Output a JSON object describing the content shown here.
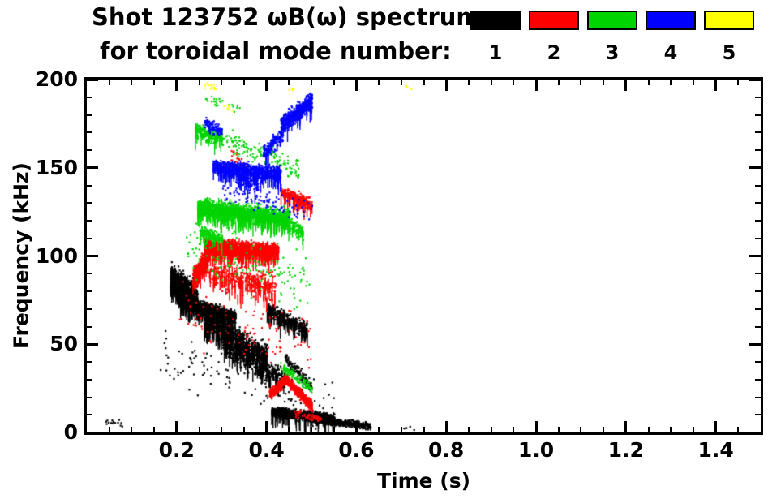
{
  "title": {
    "line1": "Shot 123752 ωB(ω) spectrum",
    "line2": "for toroidal mode number:"
  },
  "legend": {
    "entries": [
      {
        "label": "1",
        "color": "#000000"
      },
      {
        "label": "2",
        "color": "#ff0000"
      },
      {
        "label": "3",
        "color": "#00d400"
      },
      {
        "label": "4",
        "color": "#0000ff"
      },
      {
        "label": "5",
        "color": "#ffff00"
      }
    ]
  },
  "axes": {
    "xlabel": "Time (s)",
    "ylabel": "Frequency (kHz)",
    "xlim": [
      0,
      1.5
    ],
    "ylim": [
      0,
      200
    ],
    "xtick_values": [
      0.2,
      0.4,
      0.6,
      0.8,
      1.0,
      1.2,
      1.4
    ],
    "xtick_labels": [
      "0.2",
      "0.4",
      "0.6",
      "0.8",
      "1.0",
      "1.2",
      "1.4"
    ],
    "ytick_values": [
      0,
      50,
      100,
      150,
      200
    ],
    "ytick_labels": [
      "0",
      "50",
      "100",
      "150",
      "200"
    ],
    "x_minor_step": 0.05,
    "y_minor_step": 10,
    "grid": false
  },
  "chart_data": {
    "type": "scatter",
    "title": "Shot 123752 ωB(ω) spectrum for toroidal mode number",
    "xlabel": "Time (s)",
    "ylabel": "Frequency (kHz)",
    "xlim": [
      0,
      1.5
    ],
    "ylim": [
      0,
      200
    ],
    "legend_position": "top-right",
    "series": [
      {
        "name": "n=1",
        "color": "#000000",
        "clusters": [
          {
            "t": [
              0.185,
              0.245
            ],
            "f": [
              88,
              76
            ],
            "spread": 11,
            "n": 900,
            "streak": 0.25
          },
          {
            "t": [
              0.205,
              0.33
            ],
            "f": [
              75,
              66
            ],
            "spread": 5,
            "n": 1100,
            "streak": 0.15
          },
          {
            "t": [
              0.26,
              0.4
            ],
            "f": [
              64,
              44
            ],
            "spread": 9,
            "n": 800,
            "streak": 0.25
          },
          {
            "t": [
              0.3,
              0.44
            ],
            "f": [
              50,
              30
            ],
            "spread": 8,
            "n": 450,
            "streak": 0.2
          },
          {
            "t": [
              0.4,
              0.49
            ],
            "f": [
              70,
              58
            ],
            "spread": 6,
            "n": 450,
            "streak": 0.1
          },
          {
            "t": [
              0.41,
              0.55
            ],
            "f": [
              12,
              8
            ],
            "spread": 4,
            "n": 1100,
            "streak": 0.05
          },
          {
            "t": [
              0.5,
              0.63
            ],
            "f": [
              8,
              4
            ],
            "spread": 3,
            "n": 450,
            "streak": 0
          },
          {
            "t": [
              0.16,
              0.55
            ],
            "f": [
              45,
              18
            ],
            "spread": 22,
            "n": 130,
            "streak": 0
          },
          {
            "t": [
              0.04,
              0.08
            ],
            "f": [
              6,
              5
            ],
            "spread": 3,
            "n": 14,
            "streak": 0
          },
          {
            "t": [
              0.7,
              0.73
            ],
            "f": [
              3,
              3
            ],
            "spread": 2,
            "n": 5,
            "streak": 0
          },
          {
            "t": [
              0.44,
              0.5
            ],
            "f": [
              42,
              26
            ],
            "spread": 5,
            "n": 120,
            "streak": 0
          }
        ]
      },
      {
        "name": "n=2",
        "color": "#ff0000",
        "clusters": [
          {
            "t": [
              0.235,
              0.27
            ],
            "f": [
              88,
              102
            ],
            "spread": 7,
            "n": 450,
            "streak": 0.2
          },
          {
            "t": [
              0.26,
              0.425
            ],
            "f": [
              106,
              103
            ],
            "spread": 6,
            "n": 1500,
            "streak": 0.2
          },
          {
            "t": [
              0.27,
              0.42
            ],
            "f": [
              92,
              82
            ],
            "spread": 11,
            "n": 350,
            "streak": 0.3
          },
          {
            "t": [
              0.43,
              0.5
            ],
            "f": [
              137,
              129
            ],
            "spread": 5,
            "n": 300,
            "streak": 0.1
          },
          {
            "t": [
              0.405,
              0.445
            ],
            "f": [
              22,
              31
            ],
            "spread": 4,
            "n": 350,
            "streak": 0
          },
          {
            "t": [
              0.44,
              0.5
            ],
            "f": [
              31,
              15
            ],
            "spread": 4,
            "n": 450,
            "streak": 0
          },
          {
            "t": [
              0.2,
              0.5
            ],
            "f": [
              70,
              50
            ],
            "spread": 26,
            "n": 110,
            "streak": 0
          },
          {
            "t": [
              0.32,
              0.36
            ],
            "f": [
              157,
              150
            ],
            "spread": 7,
            "n": 30,
            "streak": 0
          },
          {
            "t": [
              0.46,
              0.52
            ],
            "f": [
              12,
              8
            ],
            "spread": 3,
            "n": 60,
            "streak": 0
          }
        ]
      },
      {
        "name": "n=3",
        "color": "#00d400",
        "clusters": [
          {
            "t": [
              0.245,
              0.45
            ],
            "f": [
              128,
              122
            ],
            "spread": 7,
            "n": 1500,
            "streak": 0.2
          },
          {
            "t": [
              0.24,
              0.3
            ],
            "f": [
              172,
              167
            ],
            "spread": 6,
            "n": 220,
            "streak": 0.1
          },
          {
            "t": [
              0.3,
              0.47
            ],
            "f": [
              166,
              149
            ],
            "spread": 9,
            "n": 140,
            "streak": 0
          },
          {
            "t": [
              0.43,
              0.5
            ],
            "f": [
              38,
              25
            ],
            "spread": 5,
            "n": 110,
            "streak": 0
          },
          {
            "t": [
              0.22,
              0.5
            ],
            "f": [
              105,
              85
            ],
            "spread": 22,
            "n": 140,
            "streak": 0
          },
          {
            "t": [
              0.25,
              0.3
            ],
            "f": [
              114,
              110
            ],
            "spread": 5,
            "n": 180,
            "streak": 0.1
          },
          {
            "t": [
              0.26,
              0.34
            ],
            "f": [
              190,
              184
            ],
            "spread": 4,
            "n": 25,
            "streak": 0
          },
          {
            "t": [
              0.44,
              0.48
            ],
            "f": [
              120,
              114
            ],
            "spread": 6,
            "n": 120,
            "streak": 0.1
          }
        ]
      },
      {
        "name": "n=4",
        "color": "#0000ff",
        "clusters": [
          {
            "t": [
              0.28,
              0.43
            ],
            "f": [
              151,
              147
            ],
            "spread": 6,
            "n": 850,
            "streak": 0.15
          },
          {
            "t": [
              0.43,
              0.5
            ],
            "f": [
              174,
              189
            ],
            "spread": 7,
            "n": 500,
            "streak": 0.1
          },
          {
            "t": [
              0.26,
              0.3
            ],
            "f": [
              176,
              171
            ],
            "spread": 5,
            "n": 110,
            "streak": 0
          },
          {
            "t": [
              0.3,
              0.5
            ],
            "f": [
              136,
              126
            ],
            "spread": 10,
            "n": 90,
            "streak": 0
          },
          {
            "t": [
              0.39,
              0.435
            ],
            "f": [
              158,
              170
            ],
            "spread": 6,
            "n": 160,
            "streak": 0.1
          },
          {
            "t": [
              0.33,
              0.38
            ],
            "f": [
              145,
              142
            ],
            "spread": 9,
            "n": 120,
            "streak": 0.1
          }
        ]
      },
      {
        "name": "n=5",
        "color": "#ffff00",
        "clusters": [
          {
            "t": [
              0.26,
              0.285
            ],
            "f": [
              197,
              195
            ],
            "spread": 3,
            "n": 12,
            "streak": 0
          },
          {
            "t": [
              0.3,
              0.33
            ],
            "f": [
              186,
              184
            ],
            "spread": 3,
            "n": 8,
            "streak": 0
          },
          {
            "t": [
              0.44,
              0.46
            ],
            "f": [
              196,
              195
            ],
            "spread": 2,
            "n": 6,
            "streak": 0
          },
          {
            "t": [
              0.705,
              0.725
            ],
            "f": [
              196,
              196
            ],
            "spread": 2,
            "n": 4,
            "streak": 0
          }
        ]
      }
    ]
  }
}
